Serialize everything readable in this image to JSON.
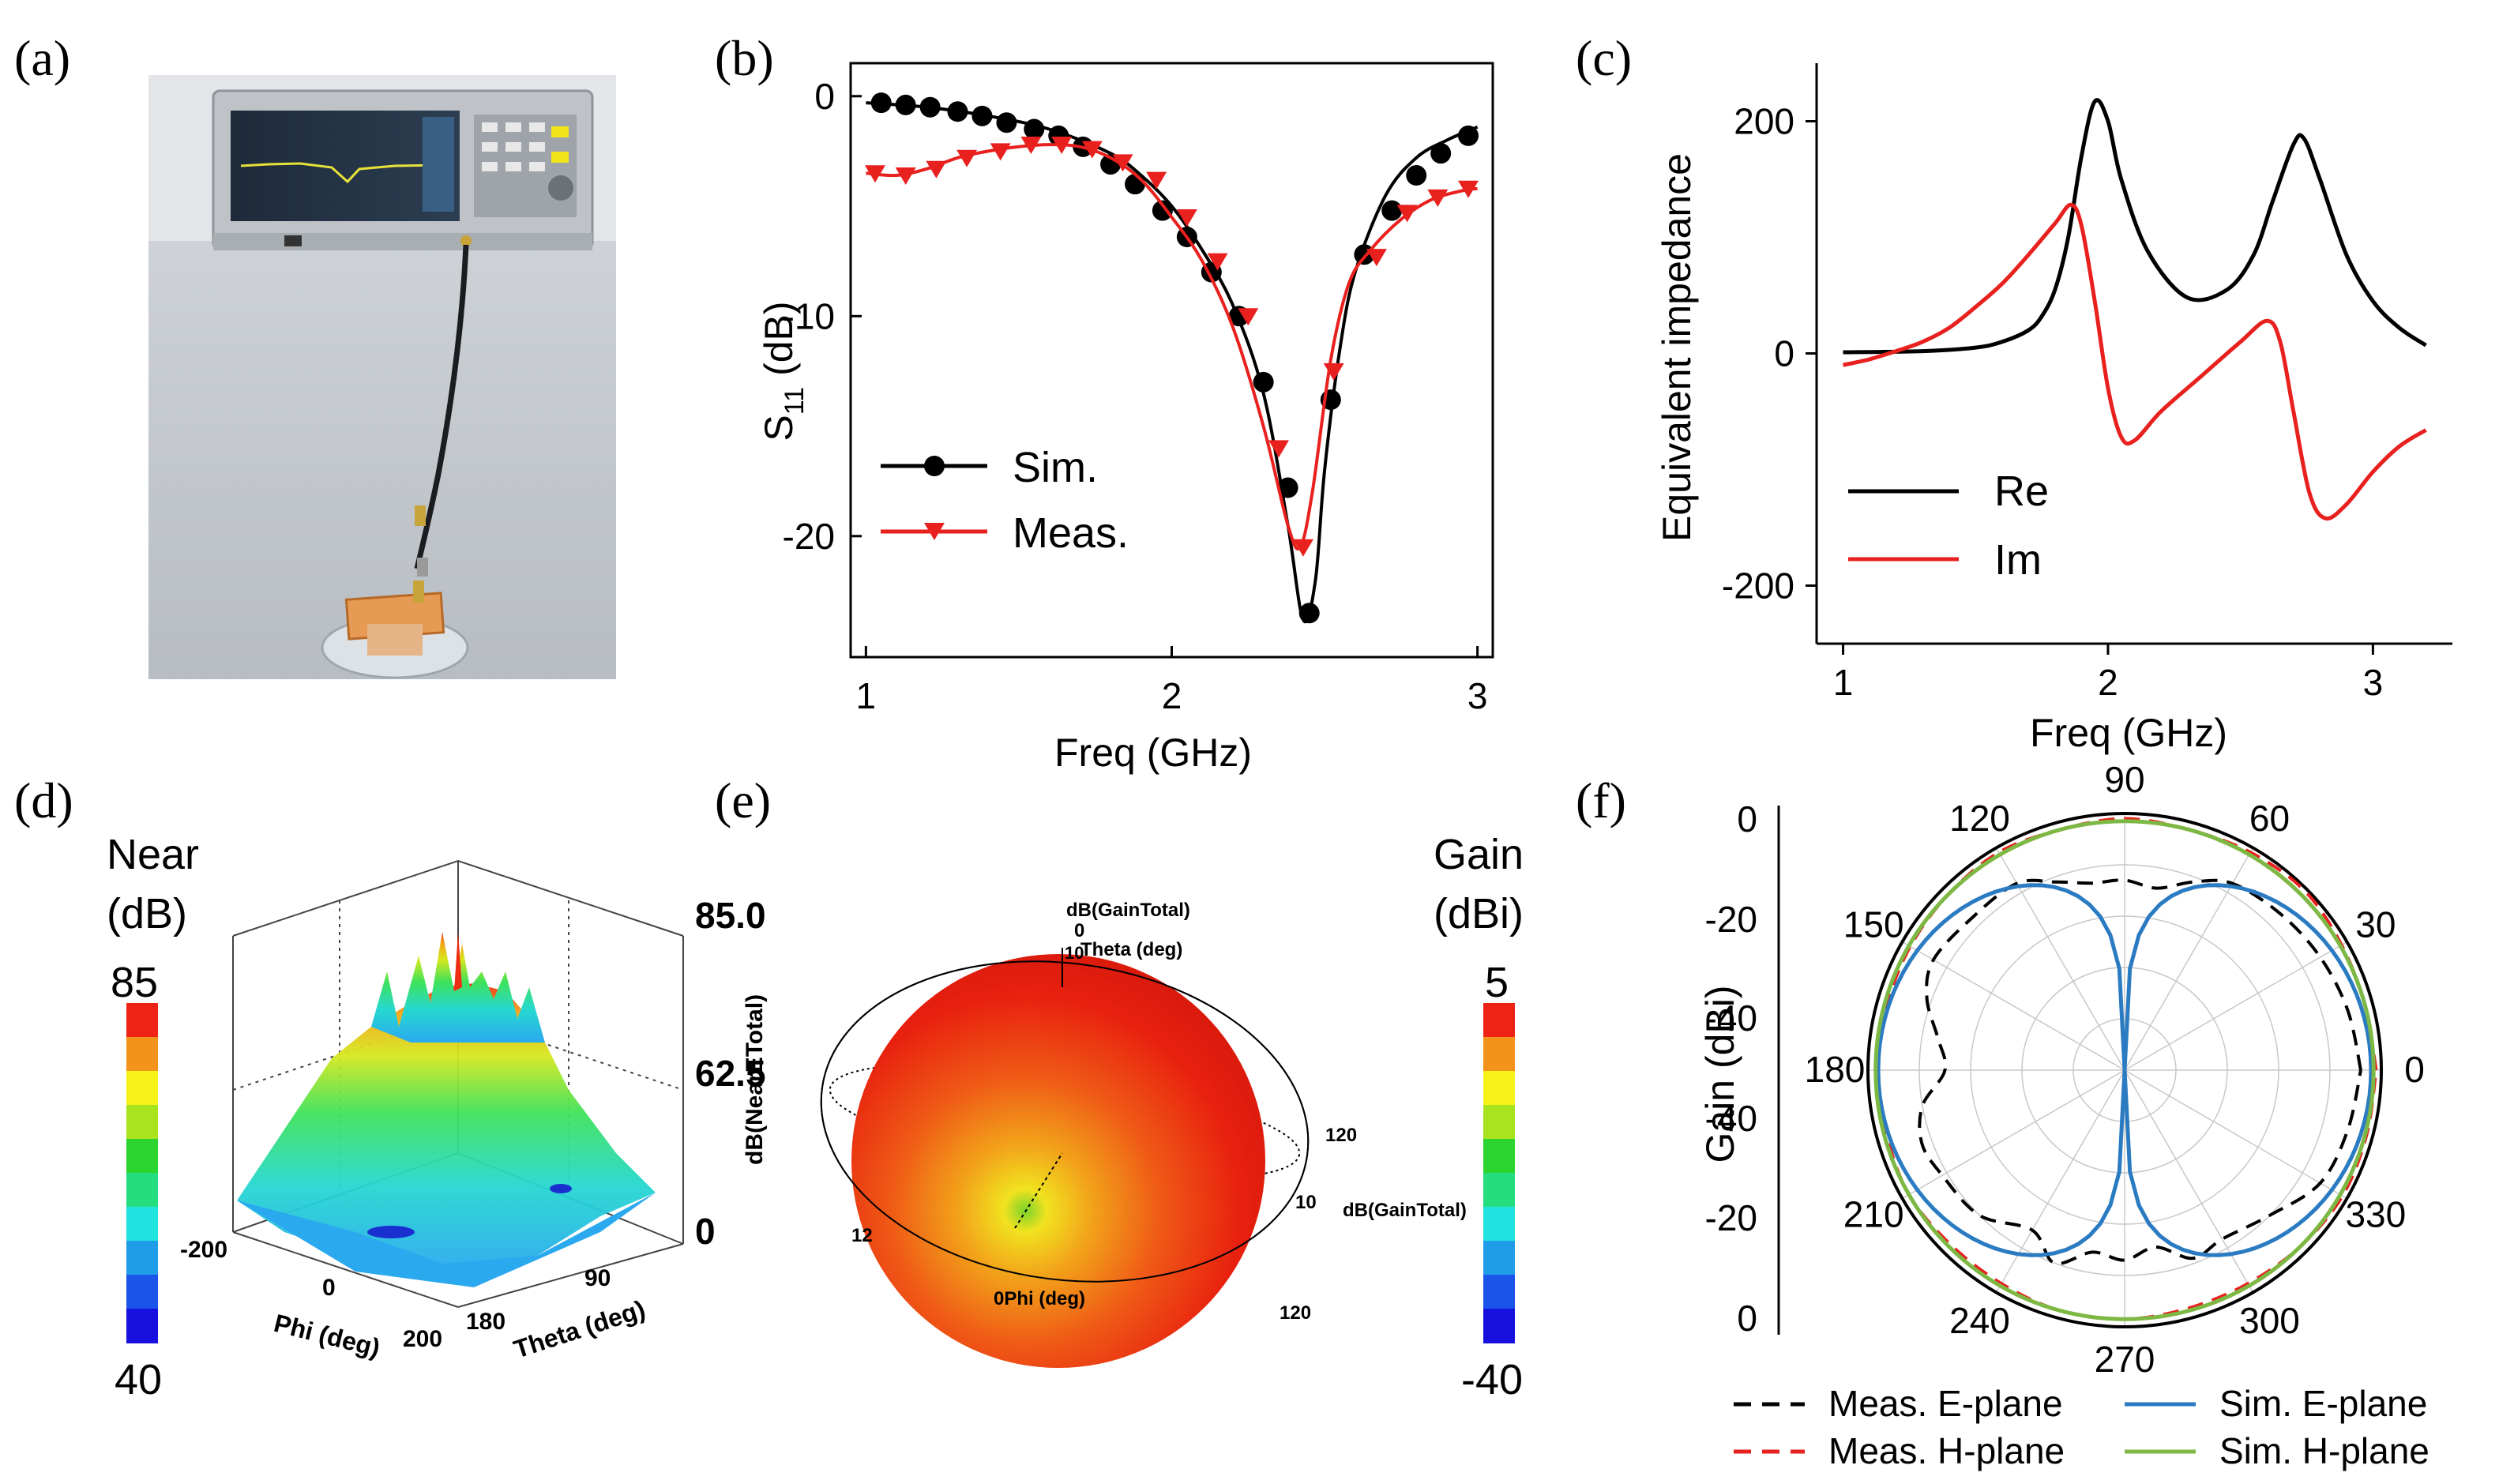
{
  "panel_labels": [
    "(a)",
    "(b)",
    "(c)",
    "(d)",
    "(e)",
    "(f)"
  ],
  "colors": {
    "black": "#000000",
    "red": "#e8201e",
    "blue": "#2a7bc2",
    "green": "#7cb843",
    "photo_bg": "#c9cdd2"
  },
  "chart_data": [
    {
      "id": "b",
      "type": "line",
      "xlabel": "Freq  (GHz)",
      "ylabel_main": "S",
      "ylabel_sub": "11",
      "ylabel_unit": "(dB)",
      "xlim": [
        0.95,
        3.05
      ],
      "ylim": [
        -25.5,
        1.5
      ],
      "xticks": [
        1,
        2,
        3
      ],
      "yticks": [
        0,
        -10,
        -20
      ],
      "series": [
        {
          "name": "Sim.",
          "color": "#000000",
          "marker": "circle",
          "curve": [
            [
              1.0,
              -0.3
            ],
            [
              1.2,
              -0.5
            ],
            [
              1.4,
              -0.9
            ],
            [
              1.6,
              -1.5
            ],
            [
              1.8,
              -2.6
            ],
            [
              1.9,
              -3.6
            ],
            [
              2.0,
              -5.0
            ],
            [
              2.1,
              -7.0
            ],
            [
              2.2,
              -9.5
            ],
            [
              2.3,
              -13.5
            ],
            [
              2.38,
              -19.5
            ],
            [
              2.43,
              -23.8
            ],
            [
              2.47,
              -22.0
            ],
            [
              2.5,
              -17.0
            ],
            [
              2.55,
              -11.5
            ],
            [
              2.6,
              -8.0
            ],
            [
              2.7,
              -4.5
            ],
            [
              2.8,
              -2.8
            ],
            [
              2.9,
              -2.0
            ],
            [
              3.0,
              -1.4
            ]
          ],
          "markers_x": [
            1.05,
            1.13,
            1.21,
            1.3,
            1.38,
            1.46,
            1.55,
            1.63,
            1.71,
            1.8,
            1.88,
            1.97,
            2.05,
            2.13,
            2.22,
            2.3,
            2.38,
            2.45,
            2.52,
            2.63,
            2.72,
            2.8,
            2.88,
            2.97
          ],
          "markers_y": [
            -0.3,
            -0.4,
            -0.5,
            -0.7,
            -0.9,
            -1.2,
            -1.5,
            -1.8,
            -2.3,
            -3.1,
            -4.0,
            -5.2,
            -6.4,
            -8.0,
            -10.0,
            -13.0,
            -17.8,
            -23.5,
            -13.8,
            -7.2,
            -5.2,
            -3.6,
            -2.6,
            -1.8
          ]
        },
        {
          "name": "Meas.",
          "color": "#e8201e",
          "marker": "triangle-down",
          "curve": [
            [
              1.0,
              -3.5
            ],
            [
              1.1,
              -3.6
            ],
            [
              1.2,
              -3.3
            ],
            [
              1.3,
              -2.8
            ],
            [
              1.4,
              -2.5
            ],
            [
              1.5,
              -2.3
            ],
            [
              1.6,
              -2.2
            ],
            [
              1.7,
              -2.3
            ],
            [
              1.8,
              -2.8
            ],
            [
              1.9,
              -3.8
            ],
            [
              2.0,
              -5.5
            ],
            [
              2.1,
              -7.5
            ],
            [
              2.2,
              -10.5
            ],
            [
              2.3,
              -15.0
            ],
            [
              2.38,
              -19.5
            ],
            [
              2.42,
              -20.5
            ],
            [
              2.46,
              -18.0
            ],
            [
              2.52,
              -12.0
            ],
            [
              2.58,
              -8.5
            ],
            [
              2.65,
              -7.0
            ],
            [
              2.75,
              -5.6
            ],
            [
              2.85,
              -4.7
            ],
            [
              2.95,
              -4.3
            ],
            [
              3.0,
              -4.2
            ]
          ],
          "markers_x": [
            1.03,
            1.13,
            1.23,
            1.33,
            1.44,
            1.54,
            1.64,
            1.74,
            1.84,
            1.95,
            2.05,
            2.15,
            2.25,
            2.35,
            2.43,
            2.53,
            2.67,
            2.77,
            2.87,
            2.97
          ],
          "markers_y": [
            -3.5,
            -3.6,
            -3.3,
            -2.8,
            -2.5,
            -2.2,
            -2.2,
            -2.4,
            -3.0,
            -3.8,
            -5.5,
            -7.5,
            -10.0,
            -16.0,
            -20.5,
            -12.5,
            -7.3,
            -5.3,
            -4.6,
            -4.2
          ]
        }
      ],
      "legend": [
        "Sim.",
        "Meas."
      ]
    },
    {
      "id": "c",
      "type": "line",
      "xlabel": "Freq  (GHz)",
      "ylabel": "Equivalent impedance",
      "xlim": [
        0.9,
        3.3
      ],
      "ylim": [
        -250,
        250
      ],
      "xticks": [
        1,
        2,
        3
      ],
      "yticks": [
        200,
        0,
        -200
      ],
      "series": [
        {
          "name": "Re",
          "color": "#000000",
          "points": [
            [
              1.0,
              1
            ],
            [
              1.3,
              2
            ],
            [
              1.5,
              5
            ],
            [
              1.6,
              10
            ],
            [
              1.7,
              20
            ],
            [
              1.75,
              32
            ],
            [
              1.8,
              55
            ],
            [
              1.85,
              100
            ],
            [
              1.9,
              170
            ],
            [
              1.95,
              217
            ],
            [
              2.0,
              200
            ],
            [
              2.05,
              150
            ],
            [
              2.15,
              88
            ],
            [
              2.3,
              48
            ],
            [
              2.45,
              55
            ],
            [
              2.55,
              85
            ],
            [
              2.62,
              130
            ],
            [
              2.7,
              180
            ],
            [
              2.74,
              185
            ],
            [
              2.8,
              150
            ],
            [
              2.9,
              85
            ],
            [
              3.0,
              45
            ],
            [
              3.1,
              22
            ],
            [
              3.2,
              7
            ]
          ]
        },
        {
          "name": "Im",
          "color": "#e8201e",
          "points": [
            [
              1.0,
              -10
            ],
            [
              1.1,
              -5
            ],
            [
              1.2,
              2
            ],
            [
              1.3,
              10
            ],
            [
              1.4,
              22
            ],
            [
              1.5,
              40
            ],
            [
              1.6,
              60
            ],
            [
              1.7,
              85
            ],
            [
              1.8,
              112
            ],
            [
              1.86,
              128
            ],
            [
              1.9,
              110
            ],
            [
              1.95,
              45
            ],
            [
              2.0,
              -30
            ],
            [
              2.05,
              -72
            ],
            [
              2.1,
              -75
            ],
            [
              2.2,
              -50
            ],
            [
              2.35,
              -20
            ],
            [
              2.5,
              10
            ],
            [
              2.6,
              28
            ],
            [
              2.65,
              10
            ],
            [
              2.7,
              -50
            ],
            [
              2.76,
              -120
            ],
            [
              2.82,
              -142
            ],
            [
              2.9,
              -130
            ],
            [
              3.0,
              -102
            ],
            [
              3.1,
              -80
            ],
            [
              3.2,
              -66
            ]
          ]
        }
      ],
      "legend": [
        "Re",
        "Im"
      ]
    },
    {
      "id": "d",
      "type": "surface3d",
      "zlabel": "dB(NearETotal)",
      "xlabel": "Phi (deg)",
      "ylabel": "Theta (deg)",
      "xticks": [
        "-200",
        "0",
        "200"
      ],
      "yticks": [
        "90",
        "180"
      ],
      "zticks": [
        "85.0",
        "62.5",
        "0"
      ],
      "colorbar": {
        "title1": "Near",
        "title2": "(dB)",
        "max": "85",
        "min": "40"
      }
    },
    {
      "id": "e",
      "type": "pattern3d",
      "labels": {
        "top1": "dB(GainTotal)",
        "top2": "0",
        "top3": "Theta (deg)",
        "top4": "10",
        "right1": "120",
        "right2": "10",
        "right3": "dB(GainTotal)",
        "right4": "120",
        "left1": "12",
        "phi": "0Phi (deg)",
        "zaxis": "dB(NearETotal)"
      },
      "colorbar": {
        "title1": "Gain",
        "title2": "(dBi)",
        "max": "5",
        "min": "-40"
      }
    },
    {
      "id": "f",
      "type": "polar",
      "rlabel": "Gain  (dBi)",
      "rlim": [
        -50,
        0
      ],
      "rticks_top": [
        "0",
        "-20",
        "-40"
      ],
      "rticks_bottom": [
        "-40",
        "-20",
        "0"
      ],
      "angle_labels": [
        "0",
        "30",
        "60",
        "90",
        "120",
        "150",
        "180",
        "210",
        "240",
        "270",
        "300",
        "330"
      ],
      "series": [
        {
          "name": "Meas. E-plane",
          "color": "#000000",
          "dash": true,
          "angles": [
            0,
            15,
            30,
            45,
            60,
            70,
            80,
            90,
            100,
            110,
            120,
            135,
            150,
            160,
            170,
            180,
            190,
            200,
            210,
            225,
            240,
            250,
            260,
            270,
            280,
            290,
            300,
            315,
            330,
            345
          ],
          "gain": [
            -4,
            -5,
            -6,
            -7,
            -8,
            -11,
            -14,
            -13,
            -13,
            -11,
            -8,
            -8,
            -7,
            -9,
            -13,
            -15,
            -10,
            -8,
            -9,
            -10,
            -14,
            -10,
            -14,
            -13,
            -15,
            -11,
            -12,
            -10,
            -6,
            -5
          ]
        },
        {
          "name": "Meas. H-plane",
          "color": "#e8201e",
          "dash": true,
          "angles": [
            0,
            15,
            30,
            45,
            60,
            75,
            90,
            105,
            120,
            135,
            150,
            165,
            180,
            195,
            210,
            225,
            240,
            255,
            270,
            285,
            300,
            315,
            330,
            345
          ],
          "gain": [
            -1,
            -1.5,
            -1.2,
            -0.5,
            -1,
            -1.5,
            -1,
            -1.5,
            -1,
            -1.5,
            -1.8,
            -2,
            -2,
            -2,
            -1.5,
            -2,
            -2,
            -1.5,
            -1.5,
            -2,
            -2,
            -1.5,
            -1,
            -1.2
          ]
        },
        {
          "name": "Sim. E-plane",
          "color": "#2a7bc2",
          "dash": false,
          "formula": "dipole-null-at-90-270"
        },
        {
          "name": "Sim. H-plane",
          "color": "#7cb843",
          "dash": false,
          "formula": "omni-0dB"
        }
      ],
      "legend": [
        "Meas. E-plane",
        "Sim. E-plane",
        "Meas. H-plane",
        "Sim. H-plane"
      ]
    }
  ]
}
